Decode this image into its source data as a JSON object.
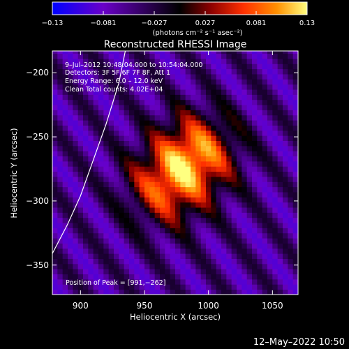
{
  "chart_data": {
    "type": "heatmap",
    "title": "Reconstructed RHESSI Image",
    "xlabel": "Heliocentric X (arcsec)",
    "ylabel": "Heliocentric Y (arcsec)",
    "xlim": [
      878,
      1070
    ],
    "ylim": [
      -373,
      -183
    ],
    "xticks": [
      "900",
      "950",
      "1000",
      "1050"
    ],
    "xtick_values": [
      900,
      950,
      1000,
      1050
    ],
    "yticks": [
      "−200",
      "−250",
      "−300",
      "−350"
    ],
    "ytick_values": [
      -200,
      -250,
      -300,
      -350
    ],
    "colorbar": {
      "range": [
        -0.13,
        0.13
      ],
      "ticks": [
        "−0.13",
        "−0.081",
        "−0.027",
        "0.027",
        "0.081",
        "0.13"
      ],
      "unit_label": "(photons cm⁻² s⁻¹ asec⁻²)",
      "colors": [
        "#0000ff",
        "#6a00c8",
        "#000000",
        "#8b0000",
        "#ff3000",
        "#ff9000",
        "#ffff80"
      ]
    },
    "annotations": [
      "9–Jul–2012 10:48:04.000 to 10:54:04.000",
      "Detectors: 3F 5F 6F 7F 8F, Att 1",
      "Energy Range: 6.0 – 12.0 keV",
      "Clean    Total counts: 4.02E+04"
    ],
    "peak_label": "Position of Peak = [991,−262]",
    "sources": [
      {
        "x": 991,
        "y": -262,
        "peak": 0.13
      },
      {
        "x": 967,
        "y": -289,
        "peak": 0.11
      }
    ],
    "limb": [
      [
        878,
        -341
      ],
      [
        890,
        -318
      ],
      [
        900,
        -296
      ],
      [
        910,
        -268
      ],
      [
        920,
        -240
      ],
      [
        930,
        -208
      ],
      [
        935,
        -183
      ]
    ]
  },
  "timestamp": "12–May–2022 10:50"
}
